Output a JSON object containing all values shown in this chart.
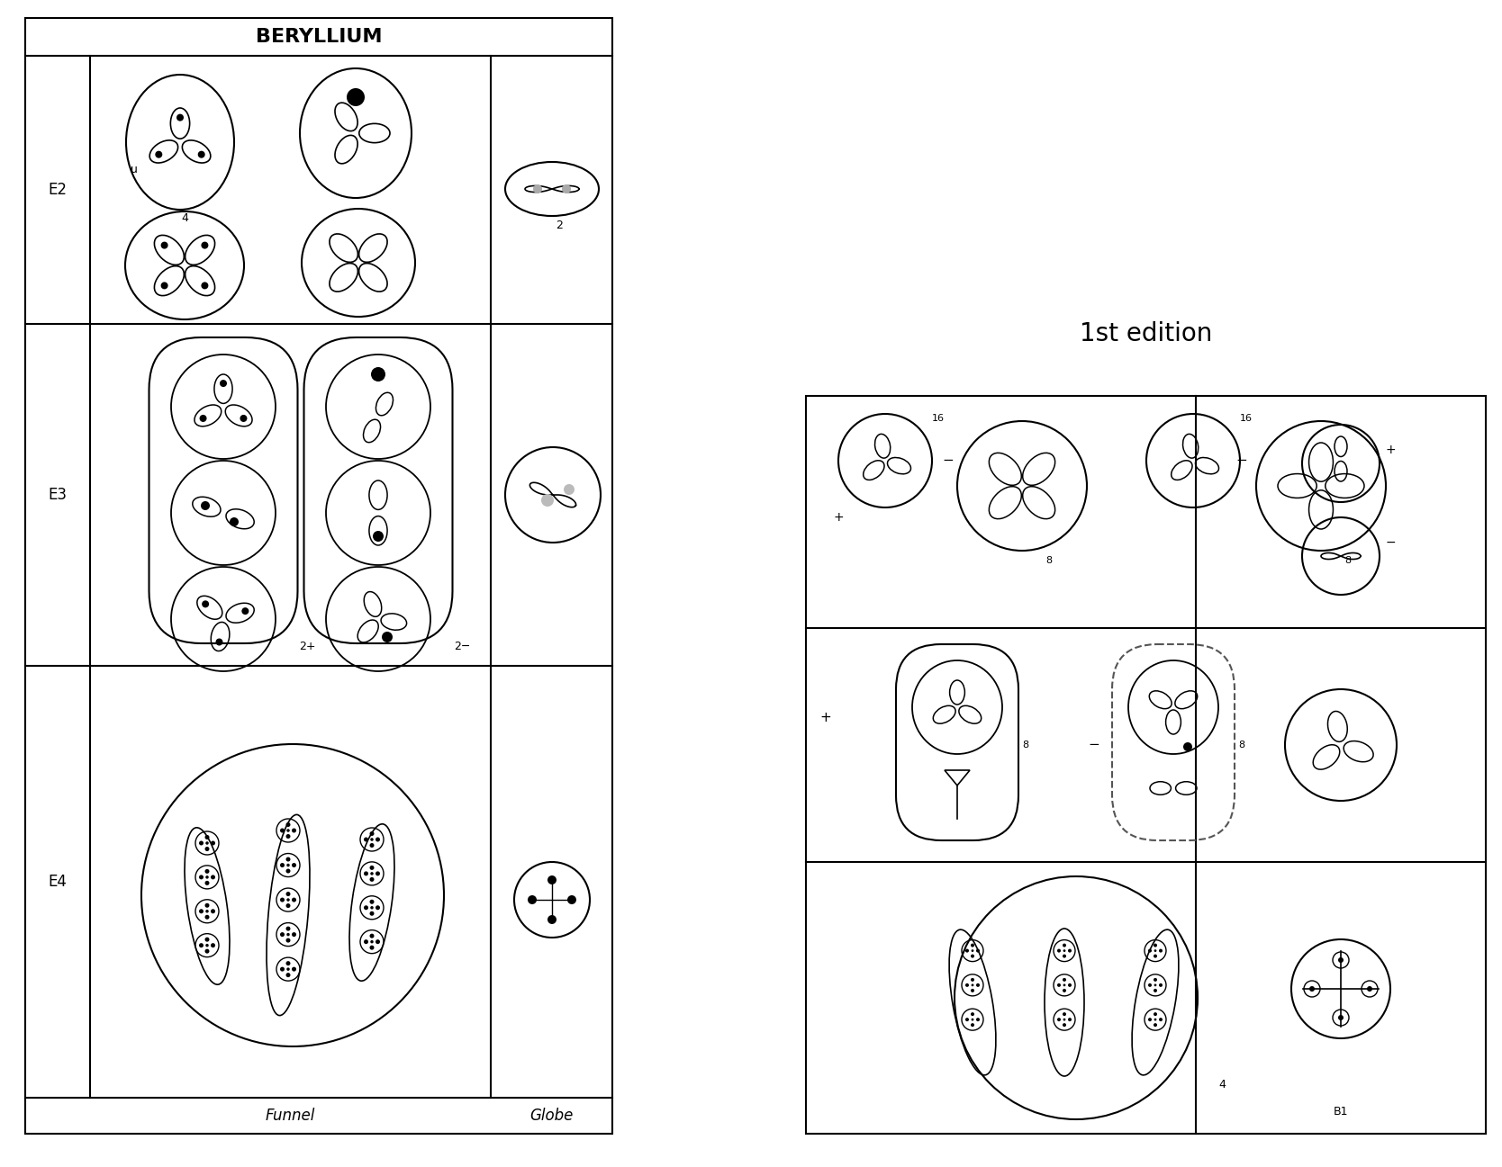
{
  "title_left": "BERYLLIUM",
  "title_right": "1st edition",
  "row_labels_left": [
    "E2",
    "E3",
    "E4"
  ],
  "col_labels_bottom": [
    "Funnel",
    "Globe"
  ],
  "bg_color": "#ffffff",
  "line_color": "#000000",
  "gray_color": "#888888",
  "light_gray": "#cccccc",
  "font_size_title": 14,
  "font_size_label": 11,
  "font_size_number": 10
}
